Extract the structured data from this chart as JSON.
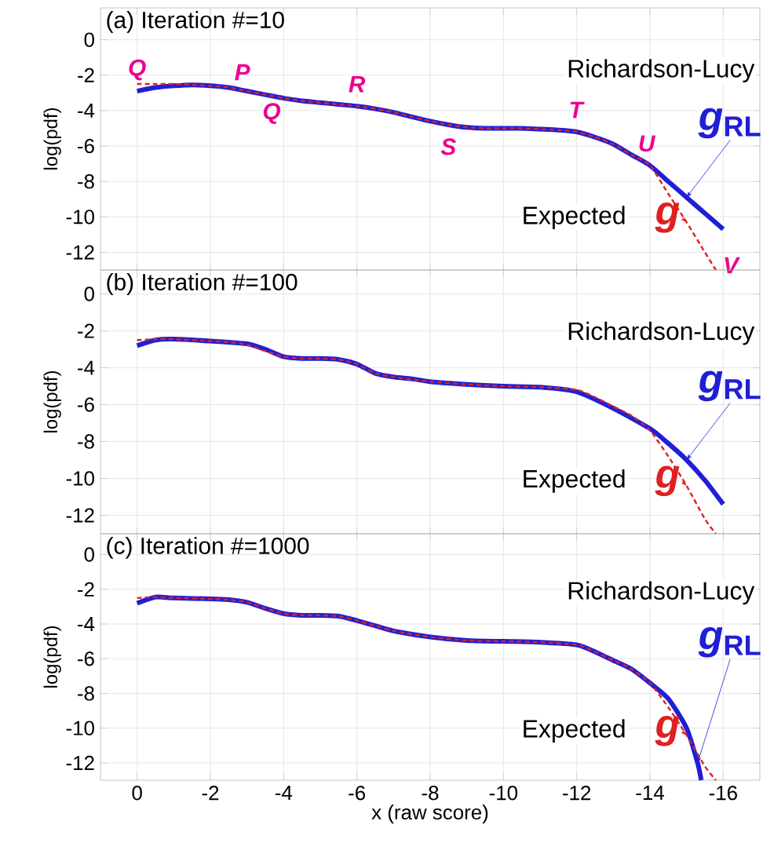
{
  "chart_data": [
    {
      "type": "line",
      "title": "(a) Iteration #=10",
      "ylabel": "log(pdf)",
      "xlim": [
        1,
        -17
      ],
      "ylim": [
        -13,
        1.8
      ],
      "xticks": [
        0,
        -2,
        -4,
        -6,
        -8,
        -10,
        -12,
        -14,
        -16
      ],
      "yticks": [
        0,
        -2,
        -4,
        -6,
        -8,
        -10,
        -12
      ],
      "grid": true,
      "tick_labels": "y",
      "marker": "none",
      "annotations": [
        "Richardson-Lucy",
        "Expected",
        {
          "text": "*Q*",
          "x": 0,
          "y": -2.5
        },
        {
          "text": "*P*",
          "x": -3,
          "y": -2.9
        },
        {
          "text": "*Q*",
          "x": -3.5,
          "y": -3.1
        },
        {
          "text": "*R*",
          "x": -6,
          "y": -3.75
        },
        {
          "text": "*S*",
          "x": -8.5,
          "y": -4.8
        },
        {
          "text": "*T*",
          "x": -12,
          "y": -5.2
        },
        {
          "text": "*U*",
          "x": -14,
          "y": -7.1
        },
        {
          "text": "*V*",
          "x": -15.8,
          "y": -13.0
        }
      ],
      "series": [
        {
          "name": "*g*$_{RL}$",
          "color": "#1f1fd6",
          "line_style": "solid",
          "x": [
            0,
            -0.5,
            -1,
            -1.5,
            -2,
            -2.5,
            -3,
            -3.5,
            -4,
            -4.5,
            -5,
            -5.5,
            -6,
            -6.5,
            -7,
            -7.5,
            -8,
            -8.5,
            -9,
            -9.5,
            -10,
            -10.5,
            -11,
            -11.5,
            -12,
            -12.5,
            -13,
            -13.5,
            -14,
            -14.5,
            -15,
            -15.5,
            -16
          ],
          "values": [
            -2.9,
            -2.7,
            -2.6,
            -2.55,
            -2.6,
            -2.7,
            -2.9,
            -3.1,
            -3.3,
            -3.45,
            -3.55,
            -3.65,
            -3.75,
            -3.9,
            -4.1,
            -4.35,
            -4.6,
            -4.8,
            -4.95,
            -5.0,
            -5.0,
            -5.0,
            -5.05,
            -5.1,
            -5.2,
            -5.5,
            -5.9,
            -6.5,
            -7.1,
            -8.0,
            -8.9,
            -9.8,
            -10.7
          ]
        },
        {
          "name": "*g*",
          "color": "#e02020",
          "line_style": "dashed",
          "x": [
            0,
            -0.5,
            -1,
            -1.5,
            -2,
            -2.5,
            -3,
            -3.5,
            -4,
            -4.5,
            -5,
            -5.5,
            -6,
            -6.5,
            -7,
            -7.5,
            -8,
            -8.5,
            -9,
            -9.5,
            -10,
            -10.5,
            -11,
            -11.5,
            -12,
            -12.5,
            -13,
            -13.5,
            -14,
            -14.5,
            -15,
            -15.5,
            -15.8
          ],
          "values": [
            -2.5,
            -2.5,
            -2.5,
            -2.55,
            -2.6,
            -2.7,
            -2.9,
            -3.1,
            -3.3,
            -3.45,
            -3.55,
            -3.65,
            -3.75,
            -3.9,
            -4.1,
            -4.35,
            -4.6,
            -4.8,
            -4.95,
            -5.0,
            -5.0,
            -5.0,
            -5.05,
            -5.1,
            -5.2,
            -5.5,
            -5.9,
            -6.5,
            -7.1,
            -8.7,
            -10.3,
            -12.0,
            -13.0
          ]
        }
      ]
    },
    {
      "type": "line",
      "title": "(b) Iteration #=100",
      "ylabel": "log(pdf)",
      "xlim": [
        1,
        -17
      ],
      "ylim": [
        -13,
        1.3
      ],
      "xticks": [
        0,
        -2,
        -4,
        -6,
        -8,
        -10,
        -12,
        -14,
        -16
      ],
      "yticks": [
        0,
        -2,
        -4,
        -6,
        -8,
        -10,
        -12
      ],
      "grid": true,
      "tick_labels": "y",
      "marker": "none",
      "annotations": [
        "Richardson-Lucy",
        "Expected"
      ],
      "series": [
        {
          "name": "*g*$_{RL}$",
          "color": "#1f1fd6",
          "line_style": "solid",
          "x": [
            0,
            -0.5,
            -1,
            -2,
            -3,
            -3.5,
            -4,
            -4.5,
            -5,
            -5.5,
            -6,
            -6.5,
            -7,
            -7.5,
            -8,
            -9,
            -10,
            -11,
            -12,
            -13,
            -14,
            -14.5,
            -15,
            -15.5,
            -16
          ],
          "values": [
            -2.8,
            -2.5,
            -2.45,
            -2.55,
            -2.7,
            -3.0,
            -3.4,
            -3.5,
            -3.5,
            -3.55,
            -3.8,
            -4.3,
            -4.5,
            -4.6,
            -4.75,
            -4.9,
            -5.0,
            -5.05,
            -5.3,
            -6.2,
            -7.3,
            -8.1,
            -9.0,
            -10.1,
            -11.4
          ]
        },
        {
          "name": "*g*",
          "color": "#e02020",
          "line_style": "dashed",
          "x": [
            0,
            -0.5,
            -1,
            -2,
            -2.5,
            -3,
            -3.5,
            -4,
            -4.5,
            -5,
            -5.5,
            -6,
            -6.5,
            -7,
            -8,
            -9,
            -10,
            -11,
            -12,
            -12.5,
            -13,
            -13.5,
            -14,
            -14.5,
            -15,
            -15.5,
            -15.8
          ],
          "values": [
            -2.5,
            -2.45,
            -2.45,
            -2.55,
            -2.6,
            -2.75,
            -3.1,
            -3.4,
            -3.5,
            -3.5,
            -3.55,
            -3.8,
            -4.3,
            -4.5,
            -4.75,
            -4.9,
            -5.0,
            -5.05,
            -5.2,
            -5.6,
            -6.1,
            -6.6,
            -7.4,
            -8.8,
            -10.4,
            -12.2,
            -13.0
          ]
        }
      ]
    },
    {
      "type": "line",
      "title": "(c) Iteration #=1000",
      "ylabel": "log(pdf)",
      "xlabel": "x (raw score)",
      "xlim": [
        1,
        -17
      ],
      "ylim": [
        -13,
        1.2
      ],
      "xticks": [
        0,
        -2,
        -4,
        -6,
        -8,
        -10,
        -12,
        -14,
        -16
      ],
      "yticks": [
        0,
        -2,
        -4,
        -6,
        -8,
        -10,
        -12
      ],
      "grid": true,
      "marker": "none",
      "annotations": [
        "Richardson-Lucy",
        "Expected"
      ],
      "series": [
        {
          "name": "*g*$_{RL}$",
          "color": "#1f1fd6",
          "line_style": "solid",
          "x": [
            0,
            -0.5,
            -1,
            -2,
            -2.5,
            -3,
            -3.5,
            -4,
            -4.5,
            -5,
            -5.5,
            -6,
            -6.5,
            -7,
            -8,
            -9,
            -10,
            -11,
            -12,
            -12.5,
            -13,
            -13.5,
            -14,
            -14.5,
            -15,
            -15.3,
            -15.4
          ],
          "values": [
            -2.8,
            -2.45,
            -2.5,
            -2.55,
            -2.6,
            -2.75,
            -3.1,
            -3.4,
            -3.5,
            -3.5,
            -3.55,
            -3.8,
            -4.1,
            -4.4,
            -4.75,
            -4.95,
            -5.0,
            -5.05,
            -5.2,
            -5.6,
            -6.1,
            -6.6,
            -7.4,
            -8.3,
            -10.0,
            -12.0,
            -13.0
          ]
        },
        {
          "name": "*g*",
          "color": "#e02020",
          "line_style": "dashed",
          "x": [
            0,
            -0.5,
            -1,
            -2,
            -2.5,
            -3,
            -3.5,
            -4,
            -4.5,
            -5,
            -5.5,
            -6,
            -6.5,
            -7,
            -8,
            -9,
            -10,
            -11,
            -12,
            -12.5,
            -13,
            -13.5,
            -14,
            -14.5,
            -15,
            -15.5,
            -15.8
          ],
          "values": [
            -2.5,
            -2.45,
            -2.5,
            -2.55,
            -2.6,
            -2.75,
            -3.1,
            -3.4,
            -3.5,
            -3.5,
            -3.55,
            -3.8,
            -4.1,
            -4.4,
            -4.75,
            -4.95,
            -5.0,
            -5.05,
            -5.2,
            -5.6,
            -6.1,
            -6.6,
            -7.4,
            -8.8,
            -10.4,
            -12.2,
            -13.0
          ]
        }
      ]
    }
  ]
}
